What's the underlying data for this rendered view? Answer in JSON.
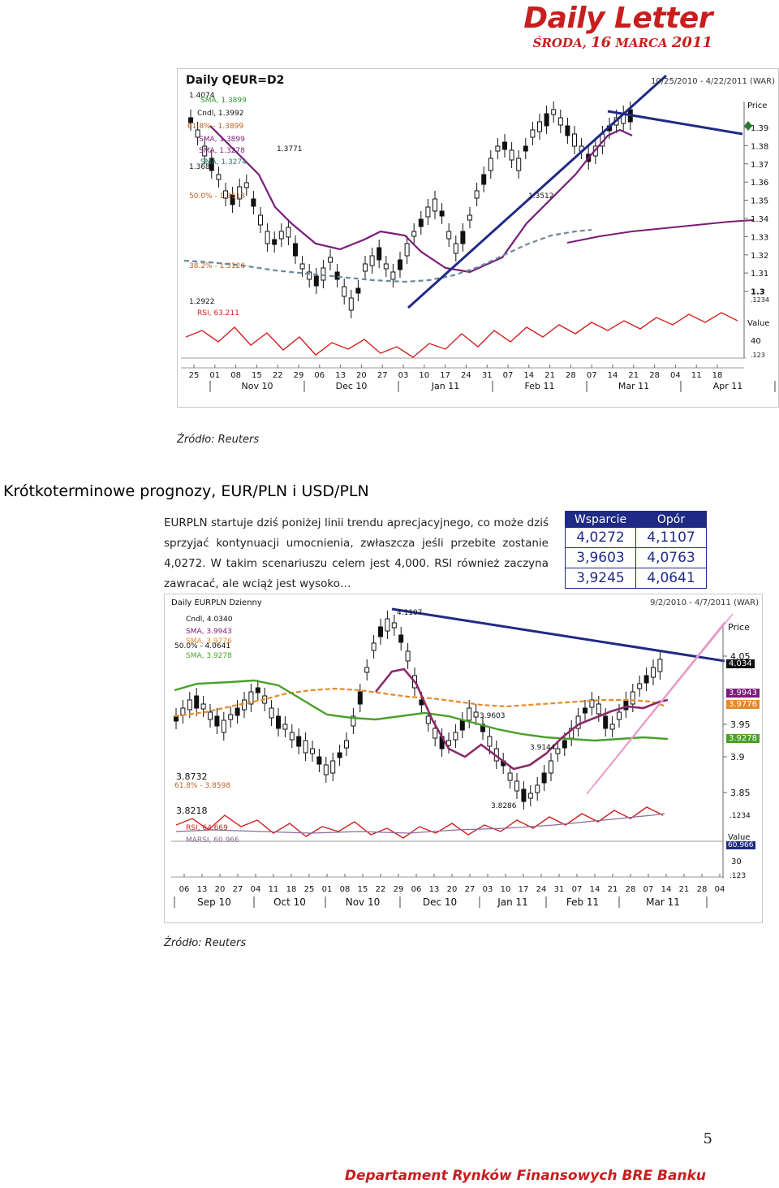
{
  "header": {
    "brand": "Daily Letter",
    "date_prefix": "ŚRODA, ",
    "date_day": "16",
    "date_month": " MARCA ",
    "date_year": "2011"
  },
  "chart1": {
    "title": "Daily QEUR=D2",
    "range": "10/25/2010 - 4/22/2011 (WAR)",
    "price_label": "Price",
    "value_label": "Value",
    "price_ticks": [
      "1.39",
      "1.38",
      "1.37",
      "1.36",
      "1.35",
      "1.34",
      "1.33",
      "1.32",
      "1.31",
      "1.3"
    ],
    "side_small": [
      ".1234",
      ".123"
    ],
    "rsi_tick": "40",
    "legend": {
      "sma1": "SMA, 1.3899",
      "cndl": "Cndl, 1.3992",
      "fib618": "61.8% - 1.3899",
      "sma2": "SMA, 1.3899",
      "sma3": "SMA, 1.3278",
      "sma4": "SMA, 1.3274"
    },
    "labels": {
      "hi": "1.4074",
      "lo368": "1.368",
      "v3771": "1.3771",
      "fib50": "50.0% - 1.3513",
      "v3512": "1.3512",
      "fib382": "38.2% - 1.3126",
      "v2922": "1.2922",
      "rsi": "RSI, 63.211"
    },
    "days": [
      "25",
      "01",
      "08",
      "15",
      "22",
      "29",
      "06",
      "13",
      "20",
      "27",
      "03",
      "10",
      "17",
      "24",
      "31",
      "07",
      "14",
      "21",
      "28",
      "07",
      "14",
      "21",
      "28",
      "04",
      "11",
      "18"
    ],
    "months": [
      "Nov 10",
      "Dec 10",
      "Jan 11",
      "Feb 11",
      "Mar 11",
      "Apr 11"
    ]
  },
  "source1": "Źródło: Reuters",
  "section_title": "Krótkoterminowe prognozy, EUR/PLN i USD/PLN",
  "paragraph": "EURPLN startuje dziś poniżej linii trendu aprecjacyjnego, co może dziś sprzyjać kontynuacji umocnienia, zwłaszcza jeśli przebite zostanie 4,0272. W takim scenariuszu celem jest 4,000. RSI również zaczyna zawracać, ale wciąż jest wysoko…",
  "levels": {
    "headers": [
      "Wsparcie",
      "Opór"
    ],
    "rows": [
      [
        "4,0272",
        "4,1107"
      ],
      [
        "3,9603",
        "4,0763"
      ],
      [
        "3,9245",
        "4,0641"
      ]
    ]
  },
  "chart2": {
    "title": "Daily EURPLN Dzienny",
    "range": "9/2/2010 - 4/7/2011 (WAR)",
    "price_label": "Price",
    "value_label": "Value",
    "legend": {
      "cndl": "Cndl, 4.0340",
      "sma1": "SMA, 3.9943",
      "sma2": "SMA, 3.9776",
      "fib50": "50.0% - 4.0641",
      "sma3": "SMA, 3.9278"
    },
    "labels": {
      "v1107": "4.1107",
      "v9603": "3.9603",
      "v9144": "3.9144",
      "v8732": "3.8732",
      "fib618": "61.8% - 3.8598",
      "v8286": "3.8286",
      "v8218": "3.8218",
      "rsi": "RSI, 64.669",
      "marsi": "MARSI, 60.966"
    },
    "price_ticks": [
      "4.05",
      "3.95",
      "3.9",
      "3.85"
    ],
    "badges": {
      "last": "4.034",
      "sma1": "3.9943",
      "sma2": "3.9776",
      "sma3": "3.9278",
      "rsi": "60.966"
    },
    "side_small": [
      ".1234",
      ".123"
    ],
    "rsi_tick": "30",
    "days": [
      "06",
      "13",
      "20",
      "27",
      "04",
      "11",
      "18",
      "25",
      "01",
      "08",
      "15",
      "22",
      "29",
      "06",
      "13",
      "20",
      "27",
      "03",
      "10",
      "17",
      "24",
      "31",
      "07",
      "14",
      "21",
      "28",
      "07",
      "14",
      "21",
      "28",
      "04"
    ],
    "months": [
      "Sep 10",
      "Oct 10",
      "Nov 10",
      "Dec 10",
      "Jan 11",
      "Feb 11",
      "Mar 11"
    ]
  },
  "source2": "Źródło: Reuters",
  "page_number": "5",
  "footer": "Departament Rynków Finansowych BRE Banku"
}
